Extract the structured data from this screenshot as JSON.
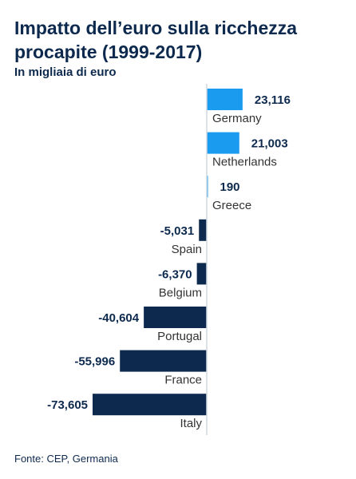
{
  "header": {
    "title": "Impatto dell’euro sulla ricchezza procapite (1999-2017)",
    "subtitle": "In migliaia di euro"
  },
  "footer": {
    "source": "Fonte: CEP, Germania"
  },
  "colors": {
    "positive": "#1a9bf0",
    "negative": "#0d2a4e",
    "axis": "#cfd8df"
  },
  "chart_data": {
    "type": "bar",
    "orientation": "horizontal",
    "title": "Impatto dell’euro sulla ricchezza procapite (1999-2017)",
    "subtitle": "In migliaia di euro",
    "categories": [
      "Germany",
      "Netherlands",
      "Greece",
      "Spain",
      "Belgium",
      "Portugal",
      "France",
      "Italy"
    ],
    "values": [
      23116,
      21003,
      190,
      -5031,
      -6370,
      -40604,
      -55996,
      -73605
    ],
    "value_labels": [
      "23,116",
      "21,003",
      "190",
      "-5,031",
      "-6,370",
      "-40,604",
      "-55,996",
      "-73,605"
    ],
    "xlim": [
      -80000,
      25000
    ],
    "grid": false,
    "legend": "none"
  }
}
